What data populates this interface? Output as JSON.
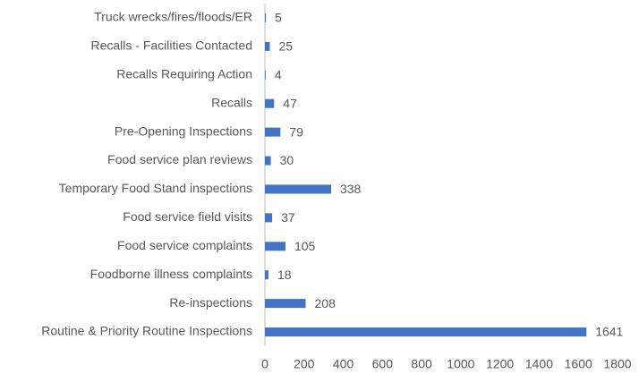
{
  "chart_data": {
    "type": "bar",
    "orientation": "horizontal",
    "categories": [
      "Truck wrecks/fires/floods/ER",
      "Recalls - Facilities Contacted",
      "Recalls Requiring Action",
      "Recalls",
      "Pre-Opening Inspections",
      "Food service plan reviews",
      "Temporary Food Stand inspections",
      "Food service field visits",
      "Food service complaints",
      "Foodborne illness complaints",
      "Re-inspections",
      "Routine & Priority Routine Inspections"
    ],
    "values": [
      5,
      25,
      4,
      47,
      79,
      30,
      338,
      37,
      105,
      18,
      208,
      1641
    ],
    "color": "#4472c4",
    "xlim": [
      0,
      1800
    ],
    "xticks": [
      0,
      200,
      400,
      600,
      800,
      1000,
      1200,
      1400,
      1600,
      1800
    ],
    "grid": false
  }
}
